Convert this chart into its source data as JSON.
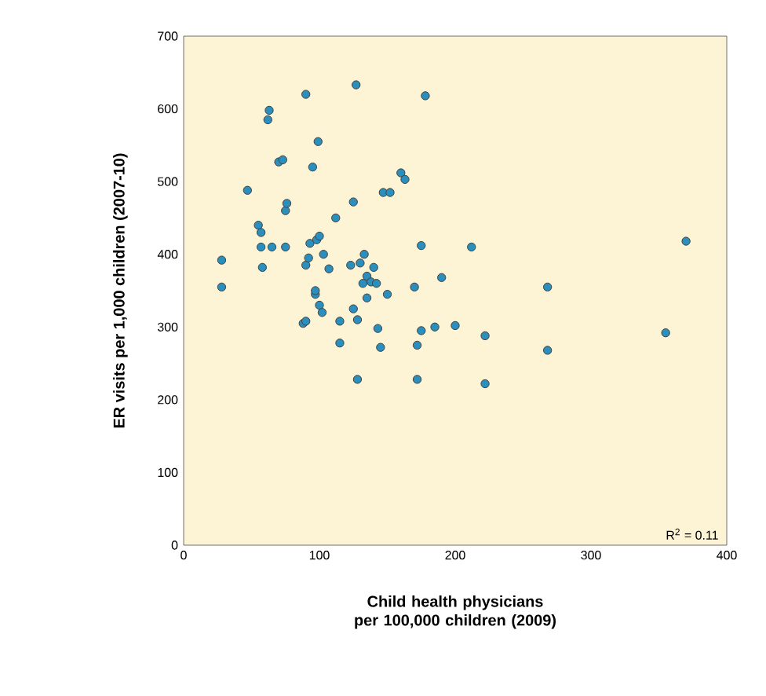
{
  "chart_data": {
    "type": "scatter",
    "xlabel": "Child health physicians per 100,000 children (2009)",
    "ylabel": "ER visits per 1,000 children (2007-10)",
    "annotations": [
      "R$^{2}$ = 0.11"
    ],
    "xlim": [
      0,
      400
    ],
    "ylim": [
      0,
      700
    ],
    "xticks": [
      0,
      100,
      200,
      300,
      400
    ],
    "yticks": [
      0,
      100,
      200,
      300,
      400,
      500,
      600,
      700
    ],
    "grid": false,
    "series": [
      {
        "color": "#2b8fbd",
        "x": [
          28,
          28,
          47,
          55,
          57,
          57,
          58,
          62,
          63,
          65,
          70,
          73,
          75,
          75,
          76,
          90,
          88,
          90,
          90,
          92,
          93,
          95,
          97,
          97,
          98,
          99,
          100,
          100,
          102,
          103,
          107,
          112,
          115,
          115,
          123,
          125,
          125,
          127,
          128,
          128,
          130,
          132,
          133,
          135,
          135,
          138,
          140,
          142,
          143,
          145,
          147,
          152,
          150,
          160,
          163,
          170,
          172,
          172,
          175,
          175,
          178,
          185,
          190,
          200,
          212,
          222,
          222,
          268,
          268,
          355,
          370
        ],
        "values": [
          392,
          355,
          488,
          440,
          430,
          410,
          382,
          585,
          598,
          410,
          527,
          530,
          460,
          410,
          470,
          620,
          305,
          308,
          385,
          395,
          415,
          520,
          345,
          350,
          420,
          555,
          425,
          330,
          320,
          400,
          380,
          450,
          308,
          278,
          385,
          325,
          472,
          633,
          228,
          310,
          388,
          360,
          400,
          340,
          370,
          362,
          382,
          360,
          298,
          272,
          485,
          485,
          345,
          512,
          503,
          355,
          275,
          228,
          295,
          412,
          618,
          300,
          368,
          302,
          410,
          288,
          222,
          355,
          268,
          292,
          418
        ]
      }
    ]
  }
}
